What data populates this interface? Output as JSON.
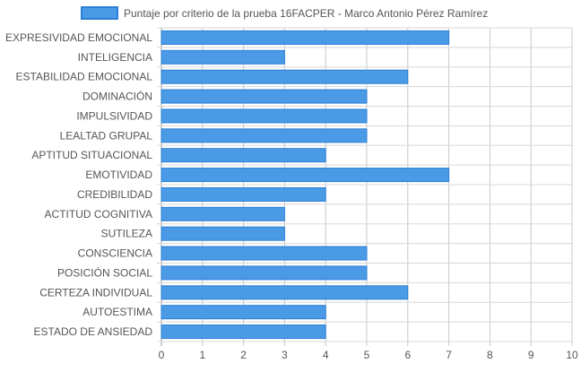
{
  "chart_data": {
    "type": "bar",
    "orientation": "horizontal",
    "categories": [
      "EXPRESIVIDAD EMOCIONAL",
      "INTELIGENCIA",
      "ESTABILIDAD EMOCIONAL",
      "DOMINACIÓN",
      "IMPULSIVIDAD",
      "LEALTAD GRUPAL",
      "APTITUD SITUACIONAL",
      "EMOTIVIDAD",
      "CREDIBILIDAD",
      "ACTITUD COGNITIVA",
      "SUTILEZA",
      "CONSCIENCIA",
      "POSICIÓN SOCIAL",
      "CERTEZA INDIVIDUAL",
      "AUTOESTIMA",
      "ESTADO DE ANSIEDAD"
    ],
    "series": [
      {
        "name": "Puntaje por criterio de la prueba 16FACPER - Marco Antonio Pérez Ramírez",
        "values": [
          7,
          3,
          6,
          5,
          5,
          5,
          4,
          7,
          4,
          3,
          3,
          5,
          5,
          6,
          4,
          4
        ]
      }
    ],
    "xlim": [
      0,
      10
    ],
    "xticks": [
      "0",
      "1",
      "2",
      "3",
      "4",
      "5",
      "6",
      "7",
      "8",
      "9",
      "10"
    ],
    "grid": true,
    "legend_position": "top",
    "colors": {
      "bar_fill": "#4a9ae6",
      "bar_stroke": "#2a7fd6",
      "grid": "#d8d8d8",
      "axis_line": "#9a9a9a",
      "text": "#555555"
    }
  }
}
